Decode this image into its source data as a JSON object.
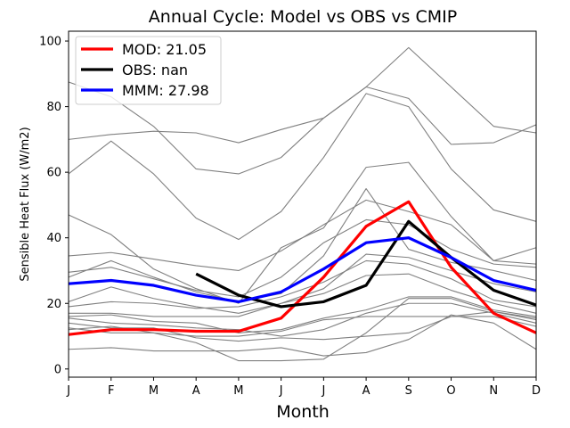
{
  "chart_data": {
    "type": "line",
    "title": "Annual Cycle: Model vs OBS vs CMIP",
    "xlabel": "Month",
    "ylabel": "Sensible Heat Flux (W/m2)",
    "categories": [
      "J",
      "F",
      "M",
      "A",
      "M",
      "J",
      "J",
      "A",
      "S",
      "O",
      "N",
      "D"
    ],
    "ylim": [
      -2.5,
      103
    ],
    "yticks": [
      0,
      20,
      40,
      60,
      80,
      100
    ],
    "legend_position": "upper-left",
    "series": [
      {
        "name": "MOD: 21.05",
        "legend": true,
        "color": "#ff0000",
        "values": [
          10.5,
          12,
          12,
          11.5,
          11.5,
          15.5,
          28,
          43.5,
          51,
          31,
          17,
          11
        ]
      },
      {
        "name": "OBS: nan",
        "legend": true,
        "color": "#000000",
        "values": [
          null,
          null,
          null,
          29,
          22.5,
          19,
          20.5,
          25.5,
          45,
          34,
          24,
          19.5
        ]
      },
      {
        "name": "MMM: 27.98",
        "legend": true,
        "color": "#0000ff",
        "values": [
          26,
          27,
          25.5,
          22.5,
          20.5,
          23.5,
          30.5,
          38.5,
          40,
          34,
          27,
          24
        ]
      }
    ],
    "cmip_models": {
      "color": "#808080",
      "lines": [
        [
          87.5,
          83,
          74,
          61,
          59.5,
          64.5,
          76.5,
          86,
          98,
          86,
          74,
          72
        ],
        [
          70,
          71.5,
          72.5,
          72,
          69,
          73,
          76.5,
          86,
          82.5,
          68.5,
          69,
          74.5
        ],
        [
          59.5,
          69.5,
          59.5,
          46,
          39.5,
          48,
          64.5,
          84,
          80,
          61,
          48.5,
          45
        ],
        [
          47,
          41,
          30.5,
          24.5,
          20,
          37,
          43,
          61.5,
          63,
          46.5,
          33,
          37
        ],
        [
          34.5,
          35.5,
          33.5,
          31.5,
          30,
          36,
          44,
          51.5,
          48,
          44,
          33,
          32
        ],
        [
          29.5,
          31,
          27.5,
          24,
          22,
          28,
          38.5,
          45.5,
          44,
          36.5,
          32,
          31
        ],
        [
          28,
          33,
          28,
          23.5,
          20.5,
          23,
          34.5,
          55,
          36.5,
          32.5,
          30,
          27
        ],
        [
          20.5,
          25,
          21.5,
          19,
          17,
          20,
          24.5,
          35,
          34,
          30,
          26,
          23.5
        ],
        [
          19,
          20.5,
          20,
          18.5,
          19,
          22,
          26.5,
          33,
          32,
          27.5,
          21,
          19
        ],
        [
          17,
          17,
          16,
          16,
          16,
          20,
          23,
          28.5,
          29,
          24,
          20,
          17
        ],
        [
          16,
          16.5,
          14.5,
          14,
          11,
          12,
          15.5,
          18,
          22,
          22,
          18,
          16
        ],
        [
          15.5,
          14,
          13.5,
          12.5,
          12,
          10,
          12,
          17,
          20,
          20,
          17,
          14
        ],
        [
          14,
          12.5,
          12.5,
          9.5,
          8.5,
          9.5,
          9,
          10,
          11,
          16,
          17.5,
          15.5
        ],
        [
          12.5,
          11,
          11,
          10,
          10,
          11.5,
          15,
          16,
          16,
          16,
          16,
          13
        ],
        [
          6,
          6.5,
          5.5,
          5.5,
          5.5,
          6.5,
          4,
          5,
          9,
          16.5,
          14,
          6
        ],
        [
          12,
          13,
          11,
          8,
          2.5,
          2.5,
          3,
          11,
          21.5,
          21.5,
          17.5,
          15
        ]
      ]
    }
  }
}
